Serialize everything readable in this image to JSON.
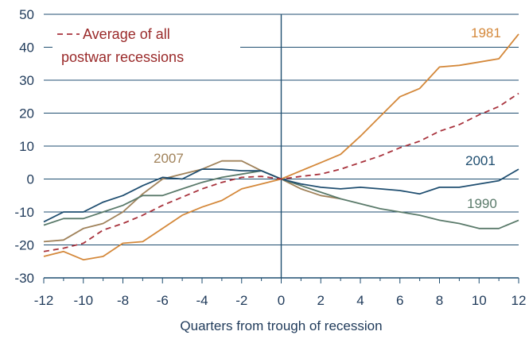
{
  "chart_data": {
    "type": "line",
    "xlabel": "Quarters from trough of recession",
    "ylabel": "",
    "xlim": [
      -12,
      12
    ],
    "ylim": [
      -30,
      50
    ],
    "x_ticks": [
      -12,
      -10,
      -8,
      -6,
      -4,
      -2,
      0,
      2,
      4,
      6,
      8,
      10,
      12
    ],
    "y_ticks": [
      -30,
      -20,
      -10,
      0,
      10,
      20,
      30,
      40,
      50
    ],
    "grid": "horizontal",
    "legend": {
      "position": "top-left",
      "entries": [
        {
          "text_line1": "Average of all",
          "text_line2": "postwar recessions",
          "series": "average"
        }
      ]
    },
    "series": [
      {
        "id": "average",
        "name": "Average of all postwar recessions",
        "color": "#a8323c",
        "dashed": true,
        "x": [
          -12,
          -11,
          -10,
          -9,
          -8,
          -7,
          -6,
          -5,
          -4,
          -3,
          -2,
          -1,
          0,
          1,
          2,
          3,
          4,
          5,
          6,
          7,
          8,
          9,
          10,
          11,
          12
        ],
        "values": [
          -22,
          -21,
          -19.5,
          -15.5,
          -13.5,
          -11,
          -8,
          -5.5,
          -3,
          -1,
          0.5,
          0.8,
          0,
          0.8,
          1.5,
          3,
          5,
          7,
          9.5,
          11.5,
          14.5,
          16.5,
          19.5,
          22,
          26
        ]
      },
      {
        "id": "s1981",
        "name": "1981",
        "color": "#d4883a",
        "dashed": false,
        "x": [
          -12,
          -11,
          -10,
          -9,
          -8,
          -7,
          -6,
          -5,
          -4,
          -3,
          -2,
          -1,
          0,
          1,
          2,
          3,
          4,
          5,
          6,
          7,
          8,
          9,
          10,
          11,
          12
        ],
        "values": [
          -23.5,
          -22,
          -24.5,
          -23.5,
          -19.5,
          -19,
          -15,
          -11,
          -8.5,
          -6.5,
          -3,
          -1.5,
          0,
          2.5,
          5,
          7.5,
          13,
          19,
          25,
          27.5,
          34,
          34.5,
          35.5,
          36.5,
          44
        ]
      },
      {
        "id": "s2007",
        "name": "2007",
        "color": "#a0825a",
        "dashed": false,
        "x": [
          -12,
          -11,
          -10,
          -9,
          -8,
          -7,
          -6,
          -5,
          -4,
          -3,
          -2,
          -1,
          0,
          1,
          2,
          3
        ],
        "values": [
          -19,
          -18.5,
          -15,
          -13.5,
          -10,
          -4.5,
          0,
          1.5,
          3,
          5.5,
          5.5,
          2.5,
          0,
          -3,
          -5,
          -6
        ]
      },
      {
        "id": "s2001",
        "name": "2001",
        "color": "#1f4e70",
        "dashed": false,
        "x": [
          -12,
          -11,
          -10,
          -9,
          -8,
          -7,
          -6,
          -5,
          -4,
          -3,
          -2,
          -1,
          0,
          1,
          2,
          3,
          4,
          5,
          6,
          7,
          8,
          9,
          10,
          11,
          12
        ],
        "values": [
          -13,
          -10,
          -10,
          -7,
          -5,
          -2,
          0.5,
          0,
          3,
          3,
          2.5,
          2.5,
          0,
          -1.5,
          -2.5,
          -3,
          -2.5,
          -3,
          -3.5,
          -4.5,
          -2.5,
          -2.5,
          -1.5,
          -0.5,
          3
        ]
      },
      {
        "id": "s1990",
        "name": "1990",
        "color": "#5a7a6a",
        "dashed": false,
        "x": [
          -12,
          -11,
          -10,
          -9,
          -8,
          -7,
          -6,
          -5,
          -4,
          -3,
          -2,
          -1,
          0,
          1,
          2,
          3,
          4,
          5,
          6,
          7,
          8,
          9,
          10,
          11,
          12
        ],
        "values": [
          -14,
          -12,
          -12,
          -10,
          -8,
          -5,
          -5,
          -3,
          -1,
          0.5,
          1.5,
          2.5,
          0,
          -2,
          -4,
          -6,
          -7.5,
          -9,
          -10,
          -11,
          -12.5,
          -13.5,
          -15,
          -15,
          -12.5
        ]
      }
    ],
    "annotations": [
      {
        "text": "1981",
        "series": "s1981",
        "color": "#d4883a"
      },
      {
        "text": "2007",
        "series": "s2007",
        "color": "#a0825a"
      },
      {
        "text": "2001",
        "series": "s2001",
        "color": "#1f4e70"
      },
      {
        "text": "1990",
        "series": "s1990",
        "color": "#5a7a6a"
      }
    ]
  }
}
